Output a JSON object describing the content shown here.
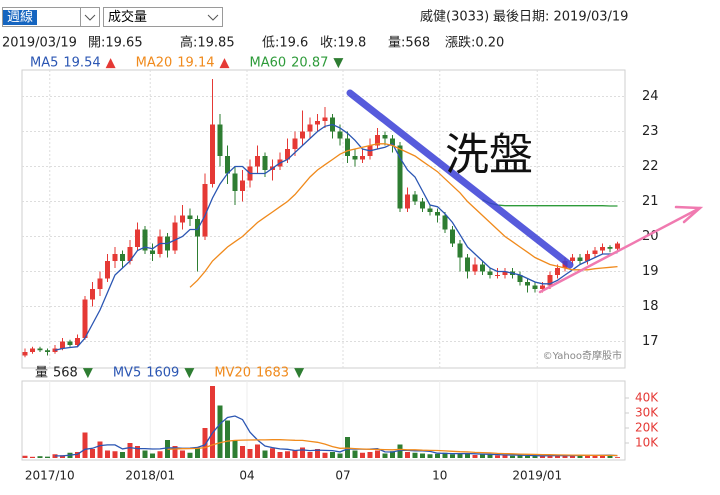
{
  "toolbar": {
    "period": "週線",
    "indicator": "成交量",
    "stock": "威健(3033)",
    "last_date": "最後日期: 2019/03/19"
  },
  "quote": [
    "2019/03/19",
    "開:19.65",
    "高:19.85",
    "低:19.6",
    "收:19.8",
    "量:568",
    "漲跌:0.20"
  ],
  "chart_data": [
    {
      "type": "candlestick",
      "up_color": "#e53935",
      "down_color": "#2e7d32",
      "grid": true,
      "ylim": [
        16.3,
        24.7
      ],
      "yticks": [
        17,
        18,
        19,
        20,
        21,
        22,
        23,
        24
      ],
      "annotation": "洗盤",
      "source": "©Yahoo奇摩股市",
      "ohlc": [
        [
          16.6,
          16.8,
          16.55,
          16.7
        ],
        [
          16.7,
          16.85,
          16.65,
          16.8
        ],
        [
          16.8,
          16.85,
          16.7,
          16.75
        ],
        [
          16.75,
          16.8,
          16.6,
          16.7
        ],
        [
          16.7,
          16.9,
          16.65,
          16.8
        ],
        [
          16.8,
          17.1,
          16.75,
          17.0
        ],
        [
          17.0,
          17.05,
          16.85,
          16.9
        ],
        [
          16.9,
          17.2,
          16.85,
          17.1
        ],
        [
          17.1,
          18.3,
          17.05,
          18.2
        ],
        [
          18.2,
          18.7,
          18.0,
          18.5
        ],
        [
          18.5,
          19.0,
          18.3,
          18.8
        ],
        [
          18.8,
          19.5,
          18.7,
          19.3
        ],
        [
          19.3,
          19.7,
          19.1,
          19.5
        ],
        [
          19.5,
          19.6,
          19.1,
          19.3
        ],
        [
          19.3,
          19.9,
          19.2,
          19.7
        ],
        [
          19.7,
          20.4,
          19.6,
          20.2
        ],
        [
          20.2,
          20.3,
          19.5,
          19.6
        ],
        [
          19.6,
          19.8,
          19.3,
          19.5
        ],
        [
          19.5,
          20.2,
          19.4,
          20.0
        ],
        [
          20.0,
          20.1,
          19.4,
          19.6
        ],
        [
          19.6,
          20.6,
          19.5,
          20.4
        ],
        [
          20.4,
          20.9,
          20.2,
          20.6
        ],
        [
          20.6,
          20.8,
          20.3,
          20.5
        ],
        [
          20.5,
          20.6,
          19.0,
          20.0
        ],
        [
          20.0,
          21.8,
          19.9,
          21.5
        ],
        [
          21.5,
          24.5,
          21.4,
          23.2
        ],
        [
          23.2,
          23.5,
          22.0,
          22.3
        ],
        [
          22.3,
          22.6,
          21.5,
          21.8
        ],
        [
          21.8,
          22.0,
          20.9,
          21.3
        ],
        [
          21.3,
          21.9,
          21.0,
          21.6
        ],
        [
          21.6,
          22.2,
          21.4,
          22.0
        ],
        [
          22.0,
          22.6,
          21.8,
          22.3
        ],
        [
          22.3,
          22.4,
          21.7,
          21.9
        ],
        [
          21.9,
          22.2,
          21.6,
          22.0
        ],
        [
          22.0,
          22.4,
          21.9,
          22.2
        ],
        [
          22.2,
          22.8,
          22.1,
          22.5
        ],
        [
          22.5,
          23.0,
          22.3,
          22.8
        ],
        [
          22.8,
          23.6,
          22.6,
          23.0
        ],
        [
          23.0,
          23.4,
          22.8,
          23.2
        ],
        [
          23.2,
          23.5,
          23.0,
          23.3
        ],
        [
          23.3,
          23.7,
          23.1,
          23.4
        ],
        [
          23.4,
          23.5,
          22.8,
          23.0
        ],
        [
          23.0,
          23.2,
          22.6,
          22.8
        ],
        [
          22.8,
          23.0,
          22.1,
          22.3
        ],
        [
          22.3,
          22.5,
          22.0,
          22.2
        ],
        [
          22.2,
          22.5,
          22.1,
          22.3
        ],
        [
          22.3,
          22.8,
          22.2,
          22.6
        ],
        [
          22.6,
          23.1,
          22.5,
          22.9
        ],
        [
          22.9,
          23.0,
          22.6,
          22.8
        ],
        [
          22.8,
          22.9,
          22.4,
          22.6
        ],
        [
          22.6,
          22.7,
          20.7,
          20.8
        ],
        [
          20.8,
          21.4,
          20.7,
          21.2
        ],
        [
          21.2,
          21.3,
          20.9,
          21.0
        ],
        [
          21.0,
          21.1,
          20.7,
          20.8
        ],
        [
          20.8,
          20.9,
          20.6,
          20.7
        ],
        [
          20.7,
          20.8,
          20.4,
          20.6
        ],
        [
          20.6,
          20.7,
          20.1,
          20.2
        ],
        [
          20.2,
          20.3,
          19.7,
          19.8
        ],
        [
          19.8,
          19.9,
          19.0,
          19.4
        ],
        [
          19.4,
          19.5,
          18.8,
          19.0
        ],
        [
          19.0,
          19.4,
          18.9,
          19.2
        ],
        [
          19.2,
          19.3,
          18.9,
          19.0
        ],
        [
          19.0,
          19.1,
          18.8,
          18.9
        ],
        [
          18.9,
          19.1,
          18.8,
          18.9
        ],
        [
          18.9,
          19.1,
          18.8,
          19.0
        ],
        [
          19.0,
          19.1,
          18.8,
          18.9
        ],
        [
          18.9,
          19.0,
          18.6,
          18.7
        ],
        [
          18.7,
          18.8,
          18.4,
          18.6
        ],
        [
          18.6,
          18.7,
          18.4,
          18.5
        ],
        [
          18.5,
          18.7,
          18.4,
          18.6
        ],
        [
          18.6,
          19.0,
          18.5,
          18.9
        ],
        [
          18.9,
          19.2,
          18.8,
          19.1
        ],
        [
          19.1,
          19.4,
          19.0,
          19.3
        ],
        [
          19.3,
          19.5,
          19.2,
          19.4
        ],
        [
          19.4,
          19.5,
          19.2,
          19.3
        ],
        [
          19.3,
          19.6,
          19.2,
          19.5
        ],
        [
          19.5,
          19.7,
          19.4,
          19.6
        ],
        [
          19.6,
          19.8,
          19.5,
          19.7
        ],
        [
          19.7,
          19.75,
          19.55,
          19.65
        ],
        [
          19.65,
          19.85,
          19.6,
          19.8
        ]
      ],
      "series": [
        {
          "name": "MA5",
          "color": "#2b56b3",
          "legend_value": 19.54,
          "trend": "▲",
          "trend_color": "#e53935",
          "values": [
            null,
            null,
            null,
            null,
            16.75,
            16.8,
            16.83,
            16.85,
            17.1,
            17.5,
            17.9,
            18.4,
            18.9,
            19.1,
            19.3,
            19.6,
            19.7,
            19.65,
            19.8,
            19.8,
            19.9,
            20.0,
            20.2,
            20.2,
            20.6,
            21.1,
            21.5,
            21.8,
            22.0,
            22.0,
            21.8,
            21.8,
            21.8,
            21.95,
            22.1,
            22.2,
            22.4,
            22.6,
            22.8,
            23.0,
            23.15,
            23.2,
            23.1,
            22.95,
            22.75,
            22.5,
            22.45,
            22.5,
            22.55,
            22.65,
            22.25,
            21.9,
            21.7,
            21.3,
            20.9,
            20.85,
            20.65,
            20.4,
            20.05,
            19.7,
            19.5,
            19.3,
            19.1,
            19.0,
            19.0,
            18.95,
            18.9,
            18.8,
            18.7,
            18.65,
            18.65,
            18.75,
            18.9,
            19.05,
            19.2,
            19.3,
            19.4,
            19.5,
            19.5,
            19.54
          ]
        },
        {
          "name": "MA20",
          "color": "#f08a1c",
          "legend_value": 19.14,
          "trend": "▲",
          "trend_color": "#e53935",
          "values": [
            null,
            null,
            null,
            null,
            null,
            null,
            null,
            null,
            null,
            null,
            null,
            null,
            null,
            null,
            null,
            null,
            null,
            null,
            null,
            null,
            null,
            null,
            18.55,
            18.75,
            19.0,
            19.3,
            19.5,
            19.7,
            19.85,
            20.0,
            20.2,
            20.4,
            20.55,
            20.7,
            20.85,
            21.0,
            21.2,
            21.45,
            21.7,
            21.9,
            22.05,
            22.2,
            22.35,
            22.45,
            22.5,
            22.55,
            22.6,
            22.65,
            22.65,
            22.6,
            22.5,
            22.4,
            22.3,
            22.15,
            22.0,
            21.85,
            21.65,
            21.45,
            21.25,
            21.0,
            20.8,
            20.6,
            20.4,
            20.2,
            20.0,
            19.85,
            19.7,
            19.55,
            19.4,
            19.3,
            19.2,
            19.15,
            19.1,
            19.05,
            19.05,
            19.05,
            19.08,
            19.1,
            19.12,
            19.14
          ]
        },
        {
          "name": "MA60",
          "color": "#2e9b3a",
          "legend_value": 20.87,
          "trend": "▼",
          "trend_color": "#2e7d32",
          "values": [
            null,
            null,
            null,
            null,
            null,
            null,
            null,
            null,
            null,
            null,
            null,
            null,
            null,
            null,
            null,
            null,
            null,
            null,
            null,
            null,
            null,
            null,
            null,
            null,
            null,
            null,
            null,
            null,
            null,
            null,
            null,
            null,
            null,
            null,
            null,
            null,
            null,
            null,
            null,
            null,
            null,
            null,
            null,
            null,
            null,
            null,
            null,
            null,
            null,
            null,
            null,
            null,
            null,
            null,
            null,
            null,
            null,
            null,
            null,
            null,
            null,
            21.05,
            20.95,
            20.9,
            20.88,
            20.88,
            20.88,
            20.88,
            20.88,
            20.88,
            20.88,
            20.88,
            20.88,
            20.88,
            20.88,
            20.88,
            20.88,
            20.88,
            20.87,
            20.87
          ]
        }
      ]
    },
    {
      "type": "volume",
      "name": "量",
      "legend_value": 568,
      "trend": "▼",
      "trend_color": "#2e7d32",
      "tick_color": "#e53935",
      "ylim": [
        0,
        50000
      ],
      "yticks": [
        {
          "value": 10000,
          "label": "10K"
        },
        {
          "value": 20000,
          "label": "20K"
        },
        {
          "value": 30000,
          "label": "30K"
        },
        {
          "value": 40000,
          "label": "40K"
        }
      ],
      "xticks": [
        {
          "value": 3.3,
          "label": "2017/10"
        },
        {
          "value": 16.7,
          "label": "2018/01"
        },
        {
          "value": 29.6,
          "label": "04"
        },
        {
          "value": 42.4,
          "label": "07"
        },
        {
          "value": 55.3,
          "label": "10"
        },
        {
          "value": 68.3,
          "label": "2019/01"
        }
      ],
      "values": [
        1500,
        800,
        1200,
        900,
        2500,
        1800,
        3500,
        4000,
        17000,
        6000,
        11000,
        5000,
        4500,
        4000,
        10000,
        8000,
        5000,
        3000,
        4500,
        12000,
        8000,
        5000,
        3500,
        7000,
        20000,
        48000,
        35000,
        25000,
        12000,
        8000,
        6000,
        9000,
        5000,
        6500,
        4000,
        4500,
        5000,
        7000,
        4000,
        6000,
        3500,
        4000,
        3000,
        14000,
        5000,
        3500,
        4000,
        5000,
        3000,
        4500,
        9000,
        4000,
        3500,
        3000,
        2500,
        2800,
        3500,
        2500,
        3000,
        3000,
        2000,
        2500,
        2200,
        1800,
        2000,
        1500,
        1800,
        1400,
        1600,
        1300,
        2000,
        1500,
        1800,
        1600,
        1500,
        2000,
        1800,
        1900,
        1800,
        568
      ],
      "series": [
        {
          "name": "MV5",
          "color": "#2b56b3",
          "legend_value": 1609,
          "trend": "▼",
          "trend_color": "#2e7d32",
          "values": [
            null,
            null,
            null,
            null,
            1400,
            1400,
            1900,
            2500,
            5800,
            6500,
            8300,
            8700,
            8700,
            6100,
            6900,
            6300,
            6300,
            6000,
            6100,
            6700,
            6700,
            6500,
            6600,
            7100,
            8700,
            16700,
            22700,
            27000,
            28000,
            25600,
            17200,
            12000,
            8000,
            6900,
            6100,
            5800,
            5000,
            5400,
            4900,
            5300,
            5100,
            4900,
            4100,
            6100,
            5900,
            5900,
            5900,
            6300,
            4100,
            4000,
            5100,
            5100,
            4800,
            4800,
            4400,
            3200,
            3100,
            2900,
            2900,
            3000,
            2800,
            2600,
            2500,
            2300,
            2100,
            2000,
            1900,
            1700,
            1600,
            1500,
            1600,
            1600,
            1600,
            1600,
            1700,
            1700,
            1750,
            1800,
            1850,
            1609
          ]
        },
        {
          "name": "MV20",
          "color": "#f08a1c",
          "legend_value": 1683,
          "trend": "▼",
          "trend_color": "#2e7d32",
          "values": [
            null,
            null,
            null,
            null,
            null,
            null,
            null,
            null,
            null,
            null,
            null,
            null,
            null,
            null,
            null,
            null,
            null,
            null,
            null,
            5700,
            6000,
            6200,
            6300,
            6400,
            6900,
            8700,
            10200,
            11300,
            11700,
            11900,
            12000,
            12100,
            12100,
            12200,
            12200,
            12000,
            11800,
            11700,
            11100,
            10500,
            9300,
            7600,
            6500,
            6600,
            6300,
            6000,
            5800,
            5700,
            5600,
            5500,
            5700,
            5500,
            5500,
            5200,
            5100,
            5000,
            4700,
            4500,
            4200,
            4100,
            3700,
            3600,
            3400,
            3100,
            2900,
            2800,
            2600,
            2500,
            2400,
            2300,
            2200,
            2100,
            2000,
            1900,
            1850,
            1800,
            1760,
            1730,
            1700,
            1683
          ]
        }
      ]
    }
  ]
}
